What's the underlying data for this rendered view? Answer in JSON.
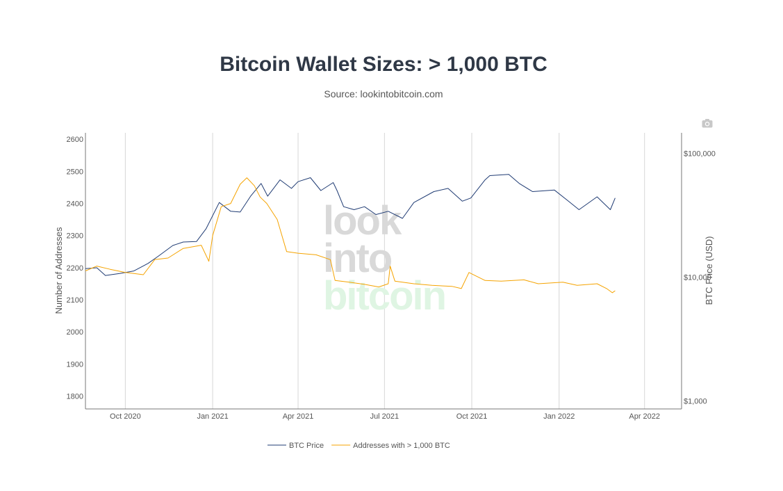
{
  "chart_data": {
    "type": "line",
    "title": "Bitcoin Wallet Sizes: > 1,000 BTC",
    "subtitle": "Source: lookintobitcoin.com",
    "y_left_label": "Number of Addresses",
    "y_right_label": "BTC Price (USD)",
    "x_ticks": [
      "Oct 2020",
      "Jan 2021",
      "Apr 2021",
      "Jul 2021",
      "Oct 2021",
      "Jan 2022",
      "Apr 2022"
    ],
    "x_tick_dates": [
      "2020-10-01",
      "2021-01-01",
      "2021-04-01",
      "2021-07-01",
      "2021-10-01",
      "2022-01-01",
      "2022-04-01"
    ],
    "xlim": [
      "2020-08-20",
      "2022-05-10"
    ],
    "y_left_ticks": [
      1800,
      1900,
      2000,
      2100,
      2200,
      2300,
      2400,
      2500,
      2600
    ],
    "y_left_lim": [
      1760,
      2620
    ],
    "y_right_scale": "log",
    "y_right_ticks": [
      1000,
      10000,
      100000
    ],
    "y_right_tick_labels": [
      "$1,000",
      "$10,000",
      "$100,000"
    ],
    "grid": "vertical",
    "legend_position": "bottom",
    "watermark": [
      "look",
      "into",
      "bitcoin"
    ],
    "series": [
      {
        "name": "BTC Price",
        "axis": "right",
        "color": "#1f3b73",
        "points": [
          [
            "2020-08-20",
            11700
          ],
          [
            "2020-09-01",
            11900
          ],
          [
            "2020-09-10",
            10300
          ],
          [
            "2020-09-25",
            10700
          ],
          [
            "2020-10-10",
            11200
          ],
          [
            "2020-10-25",
            12900
          ],
          [
            "2020-11-05",
            14800
          ],
          [
            "2020-11-20",
            18000
          ],
          [
            "2020-12-01",
            19200
          ],
          [
            "2020-12-15",
            19400
          ],
          [
            "2020-12-25",
            24500
          ],
          [
            "2021-01-08",
            40000
          ],
          [
            "2021-01-20",
            34000
          ],
          [
            "2021-01-30",
            33500
          ],
          [
            "2021-02-10",
            45000
          ],
          [
            "2021-02-21",
            57000
          ],
          [
            "2021-02-28",
            45000
          ],
          [
            "2021-03-13",
            61000
          ],
          [
            "2021-03-25",
            52000
          ],
          [
            "2021-04-01",
            59000
          ],
          [
            "2021-04-14",
            63500
          ],
          [
            "2021-04-25",
            50000
          ],
          [
            "2021-05-08",
            58000
          ],
          [
            "2021-05-12",
            50000
          ],
          [
            "2021-05-19",
            37000
          ],
          [
            "2021-05-30",
            35000
          ],
          [
            "2021-06-10",
            37000
          ],
          [
            "2021-06-22",
            32000
          ],
          [
            "2021-07-05",
            34000
          ],
          [
            "2021-07-20",
            29800
          ],
          [
            "2021-08-01",
            40000
          ],
          [
            "2021-08-22",
            49000
          ],
          [
            "2021-09-06",
            52000
          ],
          [
            "2021-09-21",
            41000
          ],
          [
            "2021-09-30",
            43500
          ],
          [
            "2021-10-15",
            61000
          ],
          [
            "2021-10-20",
            66000
          ],
          [
            "2021-11-09",
            67500
          ],
          [
            "2021-11-20",
            57000
          ],
          [
            "2021-12-04",
            49000
          ],
          [
            "2021-12-27",
            50500
          ],
          [
            "2022-01-10",
            41500
          ],
          [
            "2022-01-22",
            35000
          ],
          [
            "2022-02-10",
            44500
          ],
          [
            "2022-02-24",
            35000
          ],
          [
            "2022-03-01",
            43500
          ]
        ]
      },
      {
        "name": "Addresses with > 1,000 BTC",
        "axis": "left",
        "color": "#f5a300",
        "points": [
          [
            "2020-08-20",
            2190
          ],
          [
            "2020-09-01",
            2205
          ],
          [
            "2020-09-15",
            2195
          ],
          [
            "2020-10-01",
            2185
          ],
          [
            "2020-10-10",
            2182
          ],
          [
            "2020-10-20",
            2178
          ],
          [
            "2020-11-01",
            2225
          ],
          [
            "2020-11-15",
            2230
          ],
          [
            "2020-12-01",
            2260
          ],
          [
            "2020-12-20",
            2270
          ],
          [
            "2020-12-28",
            2220
          ],
          [
            "2021-01-01",
            2300
          ],
          [
            "2021-01-10",
            2390
          ],
          [
            "2021-01-20",
            2400
          ],
          [
            "2021-01-30",
            2460
          ],
          [
            "2021-02-06",
            2480
          ],
          [
            "2021-02-14",
            2455
          ],
          [
            "2021-02-20",
            2420
          ],
          [
            "2021-02-27",
            2400
          ],
          [
            "2021-03-10",
            2350
          ],
          [
            "2021-03-20",
            2250
          ],
          [
            "2021-04-01",
            2245
          ],
          [
            "2021-04-20",
            2240
          ],
          [
            "2021-05-05",
            2225
          ],
          [
            "2021-05-10",
            2160
          ],
          [
            "2021-05-25",
            2155
          ],
          [
            "2021-06-10",
            2148
          ],
          [
            "2021-06-25",
            2140
          ],
          [
            "2021-07-05",
            2150
          ],
          [
            "2021-07-07",
            2205
          ],
          [
            "2021-07-12",
            2158
          ],
          [
            "2021-08-01",
            2150
          ],
          [
            "2021-08-20",
            2145
          ],
          [
            "2021-09-10",
            2142
          ],
          [
            "2021-09-20",
            2135
          ],
          [
            "2021-09-28",
            2185
          ],
          [
            "2021-10-15",
            2160
          ],
          [
            "2021-11-01",
            2158
          ],
          [
            "2021-11-25",
            2162
          ],
          [
            "2021-12-10",
            2150
          ],
          [
            "2022-01-05",
            2155
          ],
          [
            "2022-01-20",
            2145
          ],
          [
            "2022-02-10",
            2150
          ],
          [
            "2022-02-20",
            2135
          ],
          [
            "2022-02-26",
            2122
          ],
          [
            "2022-03-01",
            2128
          ]
        ]
      }
    ]
  }
}
